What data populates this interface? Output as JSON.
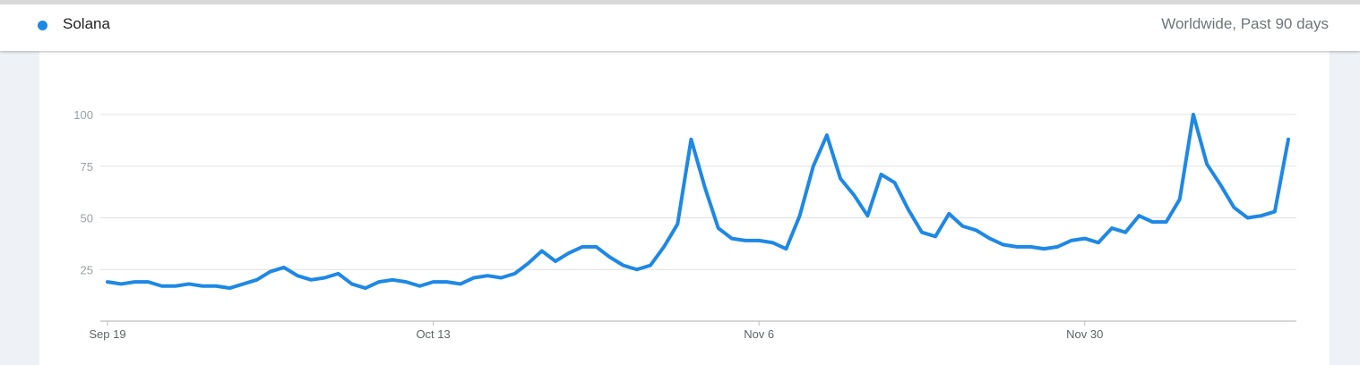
{
  "header": {
    "series_label": "Solana",
    "region_and_period": "Worldwide, Past 90 days"
  },
  "colors": {
    "series": "#1e88e5",
    "grid": "#e0e0e0",
    "axis": "#bdbdbd"
  },
  "chart_data": {
    "type": "line",
    "title": "",
    "xlabel": "",
    "ylabel": "",
    "ylim": [
      0,
      100
    ],
    "yticks": [
      25,
      50,
      75,
      100
    ],
    "grid": true,
    "x_tick_labels": [
      "Sep 19",
      "Oct 13",
      "Nov 6",
      "Nov 30"
    ],
    "x_tick_indices": [
      0,
      24,
      48,
      72
    ],
    "series": [
      {
        "name": "Solana",
        "values": [
          19,
          18,
          19,
          19,
          17,
          17,
          18,
          17,
          17,
          16,
          18,
          20,
          24,
          26,
          22,
          20,
          21,
          23,
          18,
          16,
          19,
          20,
          19,
          17,
          19,
          19,
          18,
          21,
          22,
          21,
          23,
          28,
          34,
          29,
          33,
          36,
          36,
          31,
          27,
          25,
          27,
          36,
          47,
          88,
          65,
          45,
          40,
          39,
          39,
          38,
          35,
          51,
          75,
          90,
          69,
          61,
          51,
          71,
          67,
          54,
          43,
          41,
          52,
          46,
          44,
          40,
          37,
          36,
          36,
          35,
          36,
          39,
          40,
          38,
          45,
          43,
          51,
          48,
          48,
          59,
          100,
          76,
          66,
          55,
          50,
          51,
          53,
          88
        ]
      }
    ]
  }
}
